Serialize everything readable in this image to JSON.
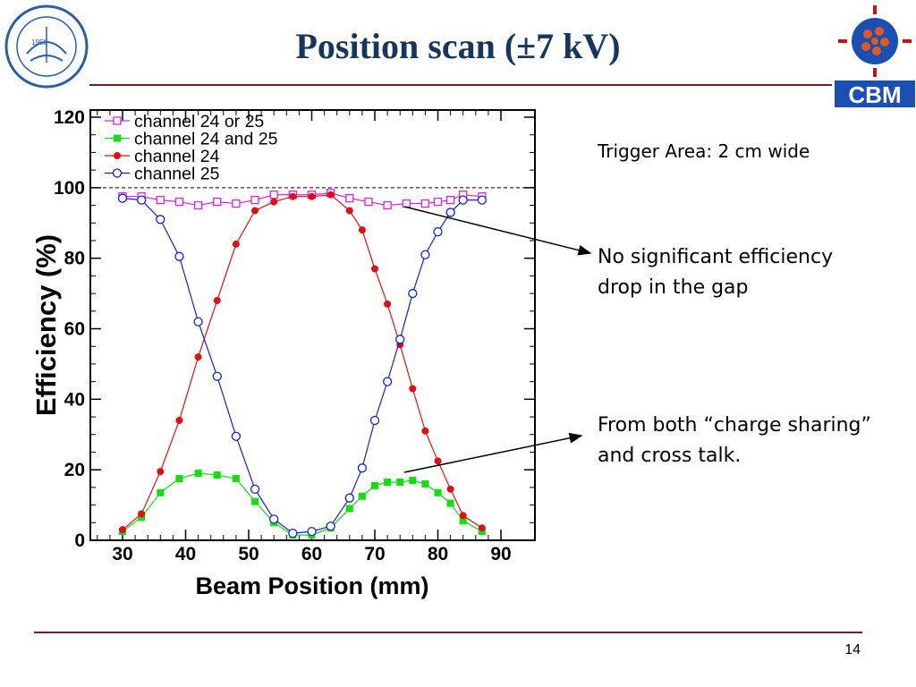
{
  "slide": {
    "title": "Position scan (±7 kV)",
    "page_number": "14",
    "logo_left_text": "1958",
    "logo_right_text": "CBM",
    "notes": {
      "trigger": "Trigger Area: 2 cm wide",
      "gap": "No significant efficiency drop in the gap",
      "sharing": "From both “charge sharing” and cross talk."
    },
    "colors": {
      "title": "#17365d",
      "rule": "#7a1c1c",
      "cbm_blue": "#1a4fb4"
    }
  },
  "chart_data": {
    "type": "scatter",
    "xlabel": "Beam Position (mm)",
    "ylabel": "Efficiency (%)",
    "xlim": [
      25,
      92
    ],
    "ylim": [
      0,
      120
    ],
    "x_ticks": [
      30,
      40,
      50,
      60,
      70,
      80,
      90
    ],
    "y_ticks": [
      0,
      20,
      40,
      60,
      80,
      100,
      120
    ],
    "reference_line": 100,
    "legend_position": "top-left",
    "series": [
      {
        "name": "channel 24  or 25",
        "color": "#e020e0",
        "marker": "open-square",
        "x": [
          30,
          33,
          36,
          39,
          42,
          45,
          48,
          51,
          54,
          57,
          60,
          63,
          66,
          69,
          72,
          75,
          78,
          80,
          82,
          84,
          87
        ],
        "y": [
          97.5,
          97.5,
          96.5,
          96,
          95,
          96,
          95.5,
          96.5,
          98,
          98,
          98,
          98.5,
          97,
          96,
          95,
          95.5,
          95.5,
          96,
          96.5,
          98,
          97.5
        ]
      },
      {
        "name": "channel 24 and 25",
        "color": "#10e010",
        "marker": "filled-square",
        "x": [
          30,
          33,
          36,
          39,
          42,
          45,
          48,
          51,
          54,
          57,
          60,
          63,
          66,
          68,
          70,
          72,
          74,
          76,
          78,
          80,
          82,
          84,
          87
        ],
        "y": [
          2.5,
          6.5,
          13.5,
          17.5,
          19,
          18.5,
          17.5,
          11,
          5,
          1.5,
          1.5,
          3.5,
          9,
          12.5,
          15.5,
          16.5,
          16.5,
          17,
          16,
          13.5,
          10.5,
          5.5,
          2.5
        ]
      },
      {
        "name": "channel 24",
        "color": "#e01010",
        "marker": "filled-circle",
        "x": [
          30,
          33,
          36,
          39,
          42,
          45,
          48,
          51,
          54,
          57,
          60,
          63,
          66,
          68,
          70,
          72,
          74,
          76,
          78,
          80,
          82,
          84,
          87
        ],
        "y": [
          3,
          7.5,
          19.5,
          34,
          52,
          68,
          84,
          93.5,
          96,
          97.5,
          97.5,
          98,
          93.5,
          88,
          77,
          67,
          55.5,
          43,
          31,
          22.5,
          14.5,
          7,
          3.5
        ]
      },
      {
        "name": "channel 25",
        "color": "#1020d0",
        "marker": "open-circle",
        "x": [
          30,
          33,
          36,
          39,
          42,
          45,
          48,
          51,
          54,
          57,
          60,
          63,
          66,
          68,
          70,
          72,
          74,
          76,
          78,
          80,
          82,
          84,
          87
        ],
        "y": [
          97,
          96.5,
          91,
          80.5,
          62,
          46.5,
          29.5,
          14.5,
          6,
          2,
          2.5,
          4,
          12,
          20.5,
          34,
          45,
          57,
          70,
          81,
          87.5,
          93,
          96.5,
          96.5
        ]
      }
    ]
  }
}
